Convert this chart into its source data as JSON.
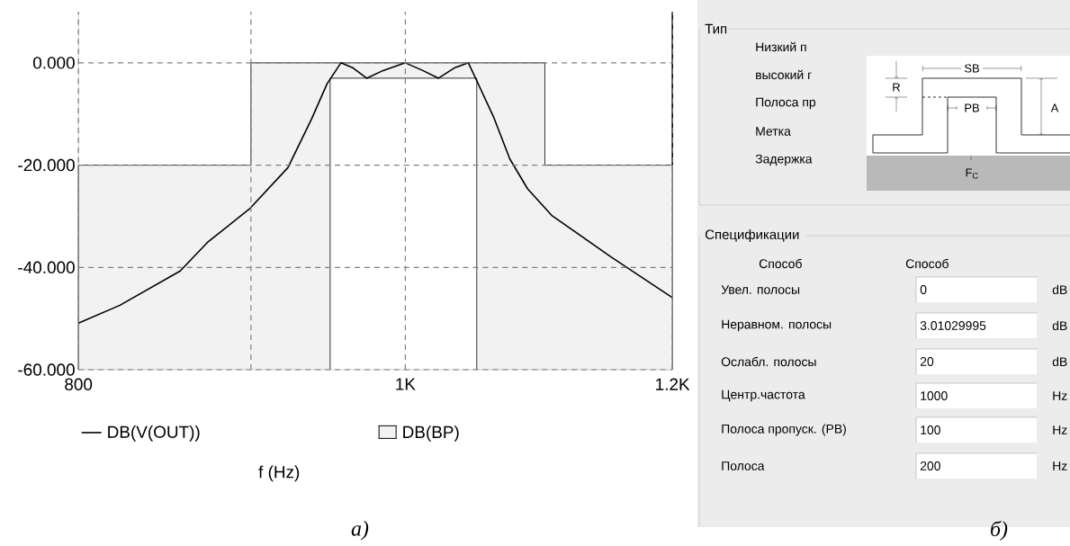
{
  "chart_data": [
    {
      "type": "line",
      "xlabel": "f (Hz)",
      "log": "x",
      "grid": true,
      "legend": "bottom",
      "xlim": [
        800,
        1200
      ],
      "xticks": [
        800,
        {
          "value": 900,
          "label": null
        },
        {
          "value": 1000,
          "label": "1K"
        },
        {
          "value": 1200,
          "label": "1.2K"
        }
      ],
      "ylim": [
        -60,
        10
      ],
      "yticks": [
        {
          "value": 0,
          "label": "0.000"
        },
        {
          "value": -20,
          "label": "-20.000"
        },
        {
          "value": -40,
          "label": "-40.000"
        },
        {
          "value": -60,
          "label": "-60.000"
        }
      ],
      "series": [
        {
          "name": "DB(BP)",
          "type": "area",
          "color": "#f2f2f2",
          "x": [
            800,
            800,
            900,
            900,
            1100,
            1100,
            1200,
            1200
          ],
          "values": [
            -60,
            -20,
            -20,
            0,
            0,
            -20,
            -20,
            -60
          ]
        },
        {
          "type": "area",
          "color": "#ffffff",
          "x": [
            950,
            950,
            1050,
            1050
          ],
          "values": [
            -60,
            -3,
            -3,
            -60
          ]
        },
        {
          "type": "line",
          "color": "#000000",
          "x": [
            1200,
            1200
          ],
          "values": [
            -20,
            10
          ]
        },
        {
          "name": "DB(V(OUT))",
          "type": "line",
          "color": "#000000",
          "x": [
            800,
            823,
            857.6,
            873.7,
            899,
            923,
            938,
            948,
            957,
            965,
            974,
            985,
            1000,
            1012,
            1023,
            1034,
            1044,
            1050,
            1062,
            1074,
            1087,
            1105,
            1151,
            1200
          ],
          "values": [
            -50.9,
            -47.4,
            -40.7,
            -35.1,
            -28.6,
            -20.5,
            -11,
            -4.1,
            0,
            -1,
            -3,
            -1.5,
            0,
            -1.5,
            -3,
            -1,
            0,
            -3.5,
            -10.5,
            -18.8,
            -24.6,
            -29.8,
            -38,
            -45.9
          ]
        }
      ],
      "annotations": [
        "а)"
      ]
    },
    {
      "type": "other",
      "annotations": [
        "Тип",
        "Низкий п",
        "высокий г",
        "Полоса пр",
        "Метка",
        "Задержка",
        "SB",
        "R",
        "PB",
        "A",
        "F$_{C}$",
        "Спецификации",
        "Способ",
        "Способ",
        "Увел. полосы",
        "Неравном. полосы",
        "Ослабл. полосы",
        "Центр.частота",
        "Полоса пропуск. (PB)",
        "Полоса",
        "0",
        "3.01029995",
        "20",
        "1000",
        "100",
        "200",
        "dB",
        "dB",
        "dB",
        "Hz",
        "Hz",
        "Hz",
        "б)"
      ]
    }
  ]
}
